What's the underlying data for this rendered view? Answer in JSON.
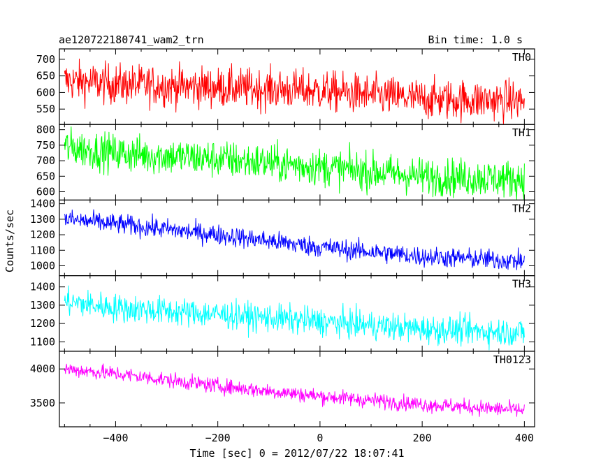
{
  "header": {
    "title": "ae120722180741_wam2_trn",
    "bin_time": "Bin time: 1.0 s"
  },
  "chart_data": {
    "type": "line",
    "title": "ae120722180741_wam2_trn",
    "subtitle": "Bin time: 1.0 s",
    "xlabel": "Time [sec] 0 = 2012/07/22 18:07:41",
    "ylabel": "Counts/sec",
    "xlim": [
      -510,
      420
    ],
    "x_ticks": [
      -400,
      -200,
      0,
      200,
      400
    ],
    "x_tick_labels": [
      "−400",
      "−200",
      "0",
      "200",
      "400"
    ],
    "bin_time_s": 1.0,
    "panels": [
      {
        "name": "TH0",
        "color": "#ff0000",
        "ylim": [
          510,
          725
        ],
        "yticks": [
          550,
          600,
          650,
          700
        ],
        "y_tick_labels": [
          "550",
          "600",
          "650",
          "700"
        ],
        "trend": {
          "x": [
            -500,
            -400,
            -200,
            0,
            200,
            400
          ],
          "y": [
            635,
            625,
            615,
            605,
            580,
            575
          ]
        },
        "noise": 30
      },
      {
        "name": "TH1",
        "color": "#00ff00",
        "ylim": [
          580,
          810
        ],
        "yticks": [
          600,
          650,
          700,
          750,
          800
        ],
        "y_tick_labels": [
          "600",
          "650",
          "700",
          "750",
          "800"
        ],
        "trend": {
          "x": [
            -500,
            -400,
            -200,
            0,
            200,
            400
          ],
          "y": [
            745,
            725,
            705,
            680,
            650,
            640
          ]
        },
        "noise": 30
      },
      {
        "name": "TH2",
        "color": "#0000ff",
        "ylim": [
          950,
          1410
        ],
        "yticks": [
          1000,
          1100,
          1200,
          1300,
          1400
        ],
        "y_tick_labels": [
          "1000",
          "1100",
          "1200",
          "1300",
          "1400"
        ],
        "trend": {
          "x": [
            -500,
            -400,
            -200,
            0,
            200,
            400
          ],
          "y": [
            1300,
            1270,
            1200,
            1120,
            1060,
            1030
          ]
        },
        "noise": 32
      },
      {
        "name": "TH3",
        "color": "#00ffff",
        "ylim": [
          1060,
          1450
        ],
        "yticks": [
          1100,
          1200,
          1300,
          1400
        ],
        "y_tick_labels": [
          "1100",
          "1200",
          "1300",
          "1400"
        ],
        "trend": {
          "x": [
            -500,
            -400,
            -200,
            0,
            200,
            400
          ],
          "y": [
            1320,
            1285,
            1250,
            1210,
            1170,
            1150
          ]
        },
        "noise": 38
      },
      {
        "name": "TH0123",
        "color": "#ff00ff",
        "ylim": [
          3180,
          4230
        ],
        "yticks": [
          3500,
          4000
        ],
        "y_tick_labels": [
          "3500",
          "4000"
        ],
        "trend": {
          "x": [
            -500,
            -400,
            -200,
            0,
            200,
            400
          ],
          "y": [
            4000,
            3930,
            3750,
            3600,
            3480,
            3390
          ]
        },
        "noise": 55
      }
    ]
  }
}
